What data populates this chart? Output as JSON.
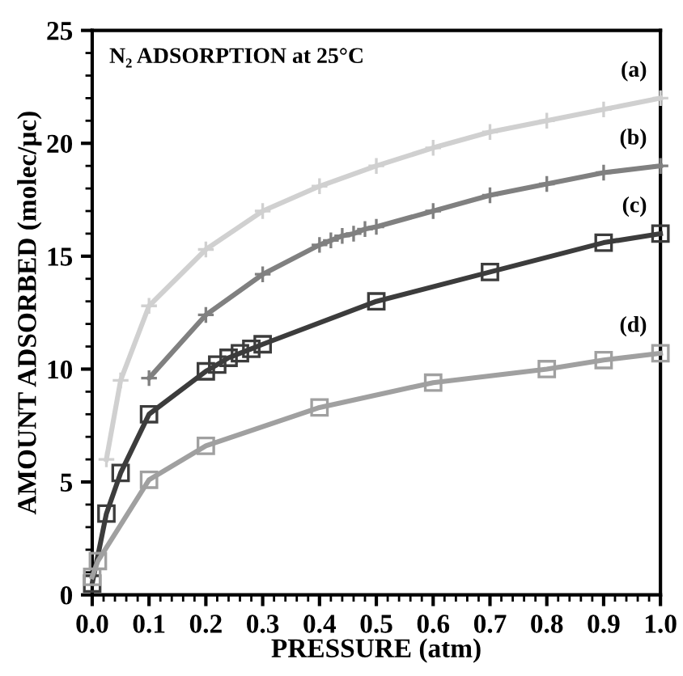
{
  "chart_data": {
    "type": "line",
    "title": "N₂ ADSORPTION at 25°C",
    "xlabel": "PRESSURE (atm)",
    "ylabel": "AMOUNT ADSORBED (molec/μc)",
    "xlim": [
      0,
      1
    ],
    "ylim": [
      0,
      25
    ],
    "xticks": [
      {
        "value": 0,
        "label": "0.0"
      },
      0.1,
      0.2,
      0.3,
      0.4,
      0.5,
      0.6,
      0.7,
      0.8,
      0.9,
      {
        "value": 1,
        "label": "1.0"
      }
    ],
    "yticks": [
      0,
      5,
      10,
      15,
      20,
      25
    ],
    "grid": false,
    "legend": false,
    "line_style": "solid",
    "series": [
      {
        "name": "(a)",
        "color": "#d0d0d0",
        "marker": "cross",
        "x": [
          0.025,
          0.05,
          0.1,
          0.2,
          0.3,
          0.4,
          0.5,
          0.6,
          0.7,
          0.8,
          0.9,
          1.0
        ],
        "values": [
          6.0,
          9.5,
          12.8,
          15.3,
          17.0,
          18.1,
          19.0,
          19.8,
          20.5,
          21.0,
          21.5,
          22.0
        ]
      },
      {
        "name": "(b)",
        "color": "#808080",
        "marker": "cross",
        "x": [
          0.1,
          0.2,
          0.3,
          0.4,
          0.42,
          0.44,
          0.46,
          0.48,
          0.5,
          0.6,
          0.7,
          0.8,
          0.9,
          1.0
        ],
        "values": [
          9.6,
          12.4,
          14.2,
          15.5,
          15.7,
          15.9,
          16.0,
          16.2,
          16.3,
          17.0,
          17.7,
          18.2,
          18.7,
          19.0
        ]
      },
      {
        "name": "(c)",
        "color": "#3c3c3c",
        "marker": "square",
        "x": [
          0,
          0.025,
          0.05,
          0.1,
          0.2,
          0.22,
          0.24,
          0.26,
          0.28,
          0.3,
          0.5,
          0.7,
          0.9,
          1.0
        ],
        "values": [
          0.5,
          3.6,
          5.4,
          8.0,
          9.9,
          10.2,
          10.5,
          10.7,
          10.9,
          11.1,
          13.0,
          14.3,
          15.6,
          16.0
        ]
      },
      {
        "name": "(d)",
        "color": "#a0a0a0",
        "marker": "square",
        "x": [
          0,
          0.01,
          0.1,
          0.2,
          0.4,
          0.6,
          0.8,
          0.9,
          1.0
        ],
        "values": [
          0.8,
          1.5,
          5.1,
          6.6,
          8.3,
          9.4,
          10.0,
          10.4,
          10.7
        ]
      }
    ]
  }
}
